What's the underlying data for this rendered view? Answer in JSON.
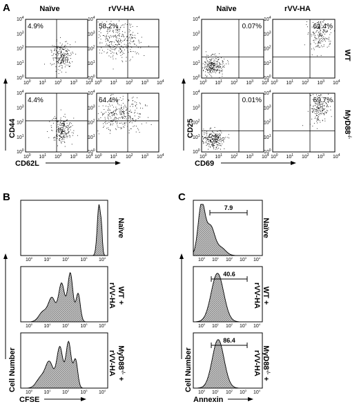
{
  "panels": {
    "A": {
      "letter": "A",
      "col_naive": "Naïve",
      "col_rvv": "rVV-HA",
      "row_wt": "WT",
      "row_myd88": "MyD88",
      "row_myd88_sup": "-/-",
      "left_ylabel": "CD44",
      "left_xlabel": "CD62L",
      "right_ylabel": "CD25",
      "right_xlabel": "CD69",
      "tick_base": "10",
      "tick_exps": [
        "0",
        "1",
        "2",
        "3",
        "4"
      ],
      "plots": [
        {
          "id": "cd44-wt-naive",
          "pct": "4.9%"
        },
        {
          "id": "cd44-wt-rvv",
          "pct": "58.2%"
        },
        {
          "id": "cd44-ko-naive",
          "pct": "4.4%"
        },
        {
          "id": "cd44-ko-rvv",
          "pct": "64.4%"
        },
        {
          "id": "cd25-wt-naive",
          "pct": "0.07%"
        },
        {
          "id": "cd25-wt-rvv",
          "pct": "61.4%"
        },
        {
          "id": "cd25-ko-naive",
          "pct": "0.01%"
        },
        {
          "id": "cd25-ko-rvv",
          "pct": "69.7%"
        }
      ]
    },
    "B": {
      "letter": "B",
      "ylabel": "Cell Number",
      "xlabel": "CFSE",
      "rows": [
        {
          "line1": "Naïve",
          "line2": ""
        },
        {
          "line1": "WT +",
          "line2": "rVV-HA"
        },
        {
          "line1": "MyD88",
          "line1_sup": "-/-",
          "line1_after": " +",
          "line2": "rVV-HA"
        }
      ]
    },
    "C": {
      "letter": "C",
      "ylabel": "Cell Number",
      "xlabel": "Annexin",
      "gates": [
        "7.9",
        "40.6",
        "86.4"
      ],
      "rows": [
        {
          "line1": "Naïve",
          "line2": ""
        },
        {
          "line1": "WT +",
          "line2": "rVV-HA"
        },
        {
          "line1": "MyD88",
          "line1_sup": "-/-",
          "line1_after": " +",
          "line2": "rVV-HA"
        }
      ]
    }
  }
}
